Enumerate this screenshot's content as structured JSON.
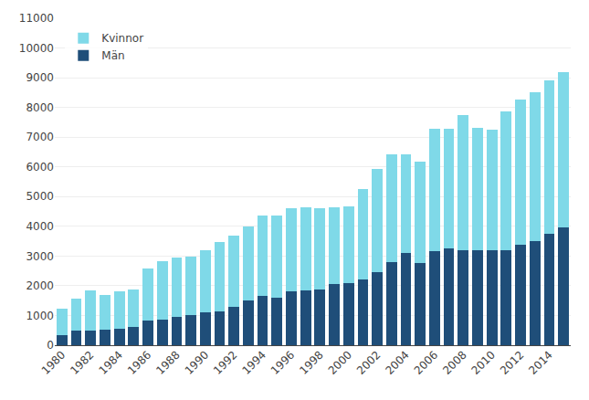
{
  "chart_data": {
    "type": "bar",
    "stacked": true,
    "categories": [
      "1980",
      null,
      "1982",
      null,
      "1984",
      null,
      "1986",
      null,
      "1988",
      null,
      "1990",
      null,
      "1992",
      null,
      "1994",
      null,
      "1996",
      null,
      "1998",
      null,
      "2000",
      null,
      "2002",
      null,
      "2004",
      null,
      "2006",
      null,
      "2008",
      null,
      "2010",
      null,
      "2012",
      null,
      "2014",
      null
    ],
    "series": [
      {
        "name": "Män",
        "color": "#1F4E79",
        "values": [
          330,
          480,
          500,
          510,
          550,
          620,
          830,
          870,
          960,
          1000,
          1120,
          1150,
          1280,
          1500,
          1650,
          1600,
          1820,
          1850,
          1860,
          2060,
          2100,
          2200,
          2450,
          2800,
          3100,
          2760,
          3150,
          3250,
          3200,
          3200,
          3200,
          3200,
          3380,
          3500,
          3750,
          3950
        ]
      },
      {
        "name": "Kvinnor",
        "color": "#7FD9E8",
        "values": [
          890,
          1090,
          1340,
          1190,
          1250,
          1250,
          1750,
          1960,
          2000,
          1970,
          2080,
          2330,
          2400,
          2500,
          2700,
          2750,
          2780,
          2790,
          2760,
          2590,
          2580,
          3060,
          3470,
          3620,
          3330,
          3420,
          4130,
          4040,
          4530,
          4110,
          4050,
          4670,
          4880,
          5020,
          5170,
          5250
        ]
      }
    ],
    "ylim": [
      0,
      11000
    ],
    "yticks": [
      0,
      1000,
      2000,
      3000,
      4000,
      5000,
      6000,
      7000,
      8000,
      9000,
      10000,
      11000
    ],
    "grid": true,
    "legend": "upper left"
  }
}
